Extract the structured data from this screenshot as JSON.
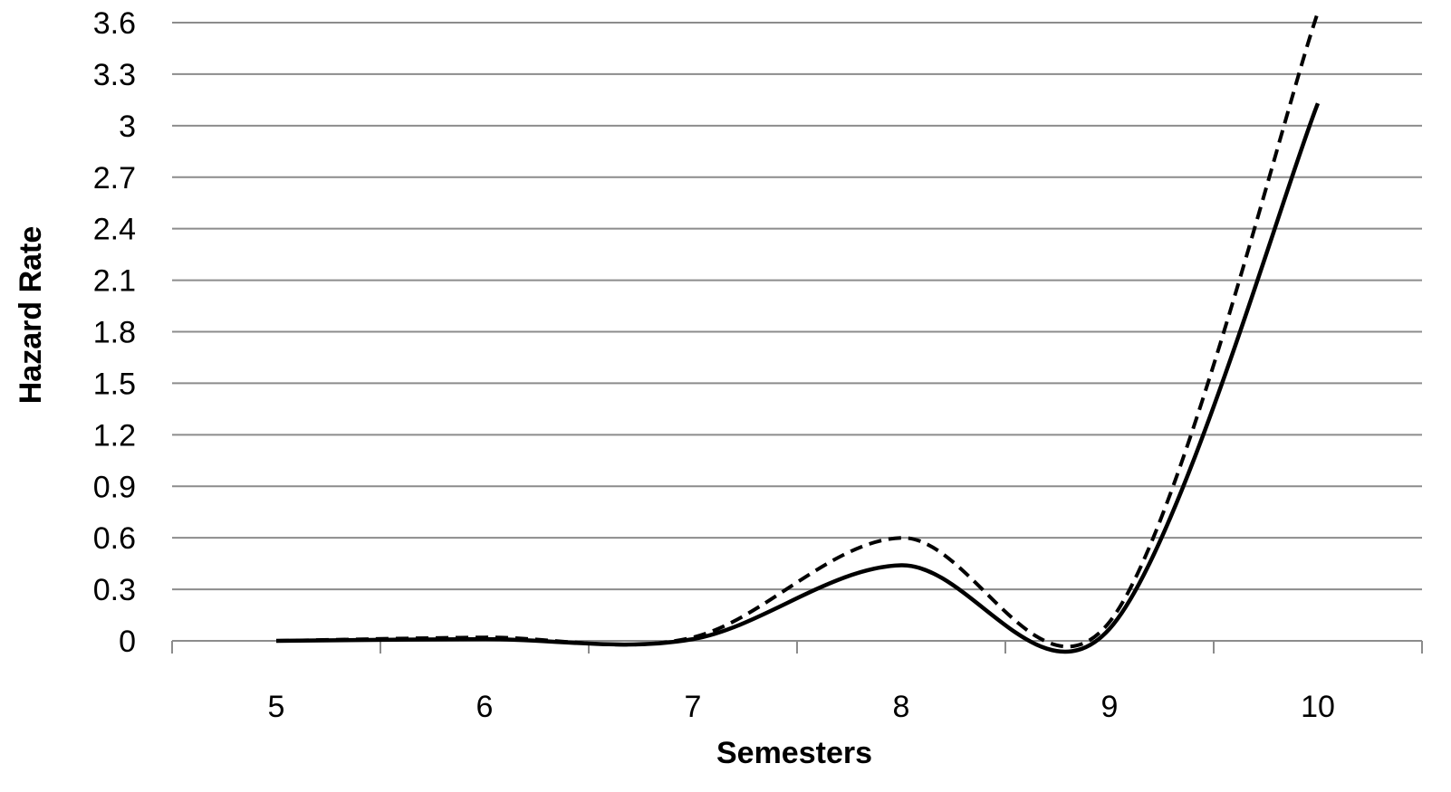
{
  "chart_data": {
    "type": "line",
    "title": "",
    "xlabel": "Semesters",
    "ylabel": "Hazard Rate",
    "x_categories": [
      "5",
      "6",
      "7",
      "8",
      "9",
      "10"
    ],
    "y_ticks": [
      "0",
      "0.3",
      "0.6",
      "0.9",
      "1.2",
      "1.5",
      "1.8",
      "2.1",
      "2.4",
      "2.7",
      "3",
      "3.3",
      "3.6"
    ],
    "ylim": [
      0,
      3.6
    ],
    "grid": "horizontal",
    "legend": "none",
    "series": [
      {
        "style": "solid",
        "color": "#000000",
        "values": [
          0.0,
          0.01,
          0.01,
          0.44,
          0.07,
          3.13
        ]
      },
      {
        "style": "dashed",
        "color": "#000000",
        "values": [
          0.0,
          0.02,
          0.02,
          0.6,
          0.11,
          3.66
        ]
      }
    ]
  }
}
